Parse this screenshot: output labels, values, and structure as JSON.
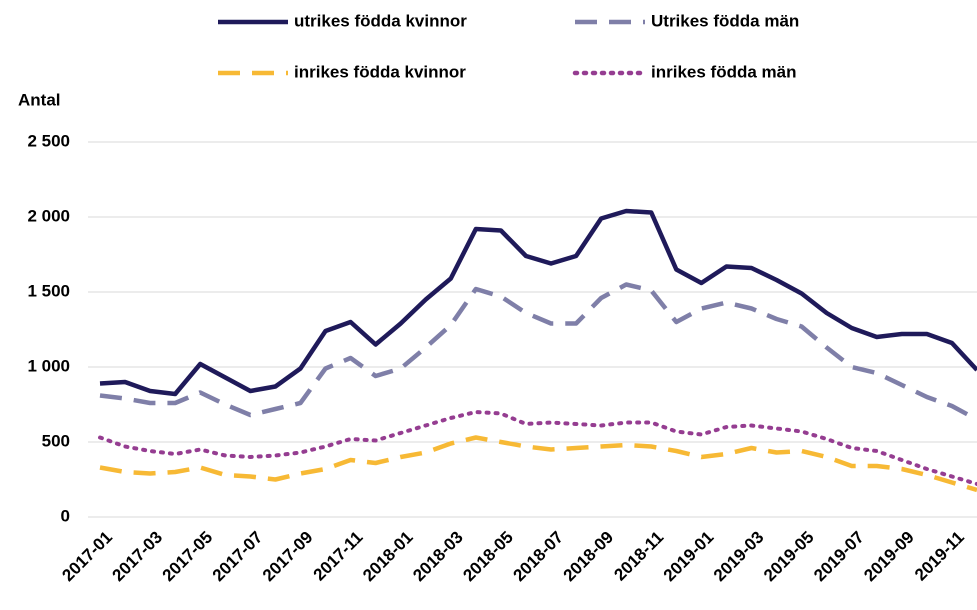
{
  "chart_data": {
    "type": "line",
    "y_axis_label": "Antal",
    "categories": [
      "2017-01",
      null,
      "2017-03",
      null,
      "2017-05",
      null,
      "2017-07",
      null,
      "2017-09",
      null,
      "2017-11",
      null,
      "2018-01",
      null,
      "2018-03",
      null,
      "2018-05",
      null,
      "2018-07",
      null,
      "2018-09",
      null,
      "2018-11",
      null,
      "2019-01",
      null,
      "2019-03",
      null,
      "2019-05",
      null,
      "2019-07",
      null,
      "2019-09",
      null,
      "2019-11",
      null
    ],
    "series": [
      {
        "name": "utrikes födda kvinnor",
        "color": "#1f1a5a",
        "line_style": "solid",
        "values": [
          890,
          900,
          840,
          820,
          1020,
          930,
          840,
          870,
          990,
          1240,
          1300,
          1150,
          1290,
          1450,
          1590,
          1920,
          1910,
          1740,
          1690,
          1740,
          1990,
          2040,
          2030,
          1650,
          1560,
          1670,
          1660,
          1580,
          1490,
          1360,
          1260,
          1200,
          1220,
          1220,
          1160,
          980
        ]
      },
      {
        "name": "Utrikes födda män",
        "color": "#7f7fa8",
        "line_style": "dashed",
        "values": [
          810,
          790,
          760,
          760,
          830,
          750,
          680,
          720,
          760,
          990,
          1060,
          940,
          990,
          1130,
          1280,
          1520,
          1470,
          1360,
          1290,
          1290,
          1460,
          1550,
          1510,
          1300,
          1390,
          1430,
          1390,
          1320,
          1270,
          1130,
          1000,
          960,
          880,
          800,
          740,
          650
        ]
      },
      {
        "name": "inrikes födda kvinnor",
        "color": "#f7b935",
        "line_style": "dashed",
        "values": [
          330,
          300,
          290,
          300,
          330,
          280,
          270,
          250,
          290,
          320,
          380,
          360,
          400,
          430,
          490,
          530,
          500,
          470,
          450,
          460,
          470,
          480,
          470,
          440,
          400,
          420,
          460,
          430,
          440,
          400,
          340,
          340,
          320,
          280,
          230,
          180
        ]
      },
      {
        "name": "inrikes födda män",
        "color": "#953d91",
        "line_style": "dotted",
        "values": [
          530,
          470,
          440,
          420,
          450,
          410,
          400,
          410,
          430,
          470,
          520,
          510,
          560,
          610,
          660,
          700,
          690,
          620,
          630,
          620,
          610,
          630,
          630,
          570,
          550,
          600,
          610,
          590,
          570,
          520,
          460,
          440,
          380,
          320,
          270,
          220
        ]
      }
    ],
    "ylim": [
      0,
      2500
    ],
    "yticks": [
      0,
      500,
      {
        "value": 1000,
        "label": "1 000"
      },
      {
        "value": 1500,
        "label": "1 500"
      },
      {
        "value": 2000,
        "label": "2 000"
      },
      {
        "value": 2500,
        "label": "2 500"
      }
    ],
    "grid": true
  }
}
